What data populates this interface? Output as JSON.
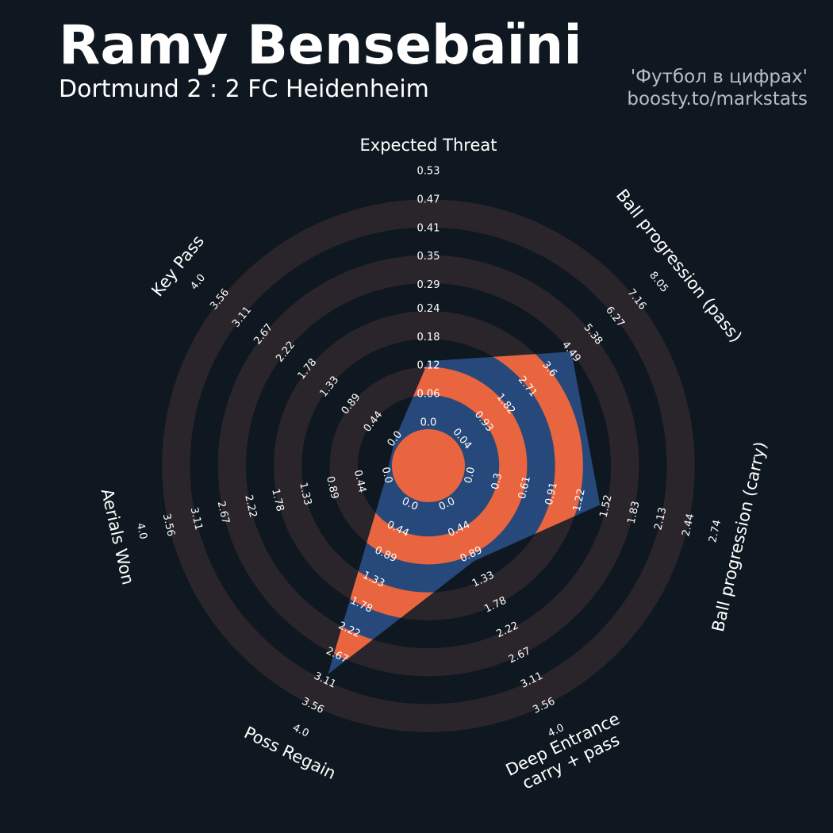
{
  "chart_data": {
    "type": "radar",
    "title": "Ramy Bensebaïni",
    "subtitle": "Dortmund 2 : 2 FC Heidenheim",
    "credits": [
      "'Футбол в цифрах'",
      "boosty.to/markstats"
    ],
    "categories": [
      "Expected Threat",
      "Ball progression (pass)",
      "Ball progression (carry)",
      [
        "Deep Entrance",
        "carry + pass"
      ],
      "Poss Regain",
      "Aerials Won",
      "Key Pass"
    ],
    "values": [
      0.13,
      4.5,
      1.45,
      1.0,
      3.0,
      0,
      0
    ],
    "color": "#27487a",
    "ring_color": "#e8653f",
    "grid_color": "#2a252b",
    "ranges": [
      [
        0,
        0.53
      ],
      [
        0.04,
        8.05
      ],
      [
        0,
        2.74
      ],
      [
        0,
        4
      ],
      [
        0,
        4
      ],
      [
        0,
        4
      ],
      [
        0,
        4
      ]
    ],
    "ticks": [
      [
        {
          "value": 0,
          "label": "0.0"
        },
        0.06,
        0.12,
        0.18,
        0.24,
        0.29,
        0.35,
        0.41,
        0.47,
        0.53
      ],
      [
        0.04,
        0.93,
        1.82,
        2.71,
        3.6,
        4.49,
        5.38,
        6.27,
        7.16,
        8.05
      ],
      [
        {
          "value": 0,
          "label": "0.0"
        },
        0.3,
        0.61,
        0.91,
        1.22,
        1.52,
        1.83,
        2.13,
        2.44,
        2.74
      ],
      [
        {
          "value": 0,
          "label": "0.0"
        },
        0.44,
        0.89,
        1.33,
        1.78,
        2.22,
        2.67,
        3.11,
        3.56,
        {
          "value": 4,
          "label": "4.0"
        }
      ],
      [
        {
          "value": 0,
          "label": "0.0"
        },
        0.44,
        0.89,
        1.33,
        1.78,
        2.22,
        2.67,
        3.11,
        3.56,
        {
          "value": 4,
          "label": "4.0"
        }
      ],
      [
        {
          "value": 0,
          "label": "0.0"
        },
        0.44,
        0.89,
        1.33,
        1.78,
        2.22,
        2.67,
        3.11,
        3.56,
        {
          "value": 4,
          "label": "4.0"
        }
      ],
      [
        {
          "value": 0,
          "label": "0.0"
        },
        0.44,
        0.89,
        1.33,
        1.78,
        2.22,
        2.67,
        3.11,
        3.56,
        {
          "value": 4,
          "label": "4.0"
        }
      ]
    ]
  }
}
